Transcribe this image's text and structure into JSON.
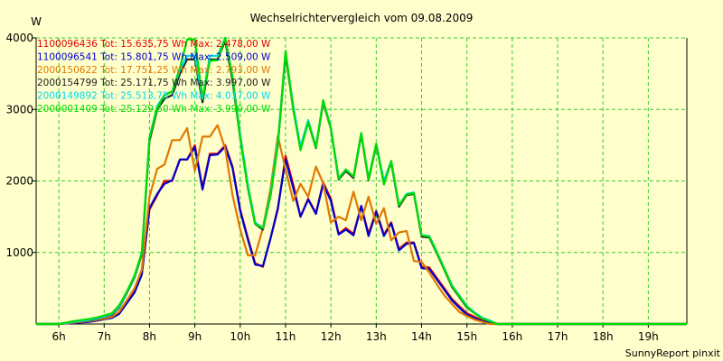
{
  "chart_data": {
    "type": "line",
    "title": "Wechselrichtervergleich vom 09.08.2009",
    "ylabel": "W",
    "xlabel": "",
    "ylim": [
      0,
      4000
    ],
    "xlim": [
      5.5,
      19.85
    ],
    "grid": true,
    "y_ticks": [
      1000,
      2000,
      3000,
      4000
    ],
    "y_tick_labels": [
      "1000",
      "2000",
      "3000",
      "4000"
    ],
    "x_ticks": [
      6,
      7,
      8,
      9,
      10,
      11,
      12,
      13,
      14,
      15,
      16,
      17,
      18,
      19
    ],
    "x_tick_labels": [
      "6h",
      "7h",
      "8h",
      "9h",
      "10h",
      "11h",
      "12h",
      "13h",
      "14h",
      "15h",
      "16h",
      "17h",
      "18h",
      "19h"
    ],
    "x": [
      5.5,
      6.0,
      6.33,
      6.67,
      6.83,
      7.0,
      7.17,
      7.33,
      7.5,
      7.67,
      7.83,
      8.0,
      8.17,
      8.33,
      8.5,
      8.67,
      8.83,
      9.0,
      9.17,
      9.33,
      9.5,
      9.67,
      9.83,
      10.0,
      10.17,
      10.33,
      10.5,
      10.67,
      10.83,
      11.0,
      11.17,
      11.33,
      11.5,
      11.67,
      11.83,
      12.0,
      12.17,
      12.33,
      12.5,
      12.67,
      12.83,
      13.0,
      13.17,
      13.33,
      13.5,
      13.67,
      13.83,
      14.0,
      14.17,
      14.33,
      14.5,
      14.67,
      14.83,
      15.0,
      15.17,
      15.33,
      15.5,
      15.67,
      15.83,
      16.0,
      16.17,
      16.33,
      16.5,
      16.67,
      16.83,
      17.0,
      17.17,
      17.33,
      17.5,
      17.67,
      17.83,
      18.0,
      18.33,
      18.67,
      19.0,
      19.33,
      19.6,
      19.85
    ],
    "series": [
      {
        "name": "1100096436",
        "legend": "1100096436 Tot: 15.635,75 Wh Max: 2.478,00 W",
        "color": "#E00000",
        "values": [
          0,
          0,
          20,
          35,
          50,
          70,
          90,
          150,
          300,
          450,
          700,
          1600,
          1800,
          2000,
          2000,
          2300,
          2300,
          2500,
          1900,
          2380,
          2380,
          2500,
          2200,
          1600,
          1200,
          850,
          800,
          1200,
          1600,
          2350,
          1950,
          1500,
          1750,
          1550,
          1980,
          1750,
          1260,
          1340,
          1260,
          1650,
          1260,
          1580,
          1250,
          1420,
          1050,
          1140,
          1140,
          800,
          790,
          650,
          500,
          350,
          250,
          150,
          100,
          50,
          30,
          0,
          0,
          0,
          0,
          0,
          0,
          0,
          0,
          0,
          0,
          0,
          0,
          0,
          0,
          0,
          0,
          0,
          0,
          0,
          0,
          0
        ]
      },
      {
        "name": "1100096541",
        "legend": "1100096541 Tot: 15.801,75 Wh Max: 2.509,00 W",
        "color": "#0000D0",
        "values": [
          0,
          0,
          15,
          30,
          45,
          65,
          85,
          140,
          290,
          440,
          690,
          1620,
          1820,
          1960,
          2010,
          2300,
          2300,
          2470,
          1880,
          2360,
          2370,
          2480,
          2180,
          1580,
          1180,
          830,
          810,
          1200,
          1620,
          2300,
          1900,
          1500,
          1740,
          1540,
          1960,
          1720,
          1250,
          1320,
          1240,
          1650,
          1230,
          1570,
          1230,
          1410,
          1030,
          1120,
          1130,
          780,
          770,
          630,
          480,
          330,
          230,
          130,
          80,
          40,
          20,
          0,
          0,
          0,
          0,
          0,
          0,
          0,
          0,
          0,
          0,
          0,
          0,
          0,
          0,
          0,
          0,
          0,
          0,
          0,
          0,
          0
        ]
      },
      {
        "name": "2000150622",
        "legend": "2000150622 Tot: 17.751,25 Wh Max: 2.793,00 W",
        "color": "#E07800",
        "values": [
          0,
          0,
          20,
          40,
          55,
          75,
          100,
          170,
          330,
          500,
          760,
          1780,
          2170,
          2230,
          2570,
          2570,
          2740,
          2140,
          2620,
          2620,
          2780,
          2450,
          1800,
          1320,
          960,
          960,
          1340,
          1900,
          2630,
          2160,
          1720,
          1960,
          1780,
          2200,
          1970,
          1420,
          1500,
          1450,
          1850,
          1450,
          1780,
          1400,
          1620,
          1170,
          1280,
          1300,
          880,
          870,
          720,
          560,
          400,
          280,
          170,
          110,
          60,
          30,
          0,
          0,
          0,
          0,
          0,
          0,
          0,
          0,
          0,
          0,
          0,
          0,
          0,
          0,
          0,
          0,
          0,
          0,
          0,
          0,
          0,
          0
        ]
      },
      {
        "name": "2000154799",
        "legend": "2000154799 Tot: 25.171,75 Wh Max: 3.997,00 W",
        "color": "#222222",
        "values": [
          0,
          0,
          30,
          50,
          70,
          100,
          130,
          230,
          430,
          650,
          970,
          2560,
          3000,
          3150,
          3200,
          3500,
          3700,
          3700,
          3100,
          3700,
          3700,
          3960,
          3400,
          2600,
          1900,
          1400,
          1320,
          1800,
          2500,
          3770,
          3000,
          2460,
          2820,
          2460,
          3100,
          2730,
          2020,
          2140,
          2040,
          2650,
          2010,
          2500,
          1980,
          2260,
          1640,
          1800,
          1820,
          1220,
          1210,
          1000,
          760,
          520,
          380,
          230,
          150,
          80,
          40,
          0,
          0,
          0,
          0,
          0,
          0,
          0,
          0,
          0,
          0,
          0,
          0,
          0,
          0,
          0,
          0,
          0,
          0,
          0,
          0,
          0
        ]
      },
      {
        "name": "2000149892",
        "legend": "2000149892 Tot: 25.513,75 Wh Max: 4.017,00 W",
        "color": "#00D8F0",
        "values": [
          0,
          0,
          30,
          55,
          75,
          105,
          140,
          240,
          440,
          660,
          990,
          2610,
          3050,
          3200,
          3250,
          3550,
          3750,
          3750,
          3150,
          3750,
          3750,
          4000,
          3450,
          2650,
          1950,
          1420,
          1340,
          1830,
          2550,
          3800,
          3050,
          2480,
          2850,
          2480,
          3120,
          2750,
          2040,
          2160,
          2060,
          2670,
          2030,
          2520,
          2000,
          2280,
          1660,
          1820,
          1840,
          1240,
          1230,
          1020,
          780,
          540,
          400,
          250,
          160,
          90,
          50,
          0,
          0,
          0,
          0,
          0,
          0,
          0,
          0,
          0,
          0,
          0,
          0,
          0,
          0,
          0,
          0,
          0,
          0,
          0,
          0,
          0
        ]
      },
      {
        "name": "2000001409",
        "legend": "2000001409 Tot: 25.129,50 Wh Max: 3.990,00 W",
        "color": "#00DD00",
        "values": [
          0,
          0,
          40,
          70,
          90,
          120,
          150,
          260,
          450,
          680,
          1000,
          2600,
          3020,
          3200,
          3250,
          3580,
          3980,
          3980,
          3150,
          3680,
          3690,
          4000,
          3450,
          2600,
          1900,
          1400,
          1340,
          1800,
          2500,
          3820,
          3000,
          2430,
          2820,
          2470,
          3130,
          2730,
          2030,
          2160,
          2060,
          2670,
          2020,
          2520,
          1950,
          2280,
          1660,
          1810,
          1830,
          1240,
          1220,
          1010,
          770,
          530,
          390,
          240,
          150,
          80,
          40,
          0,
          0,
          0,
          0,
          0,
          0,
          0,
          0,
          0,
          0,
          0,
          0,
          0,
          0,
          0,
          0,
          0,
          0,
          0,
          0,
          0
        ]
      }
    ]
  },
  "footer": "SunnyReport pinxit"
}
